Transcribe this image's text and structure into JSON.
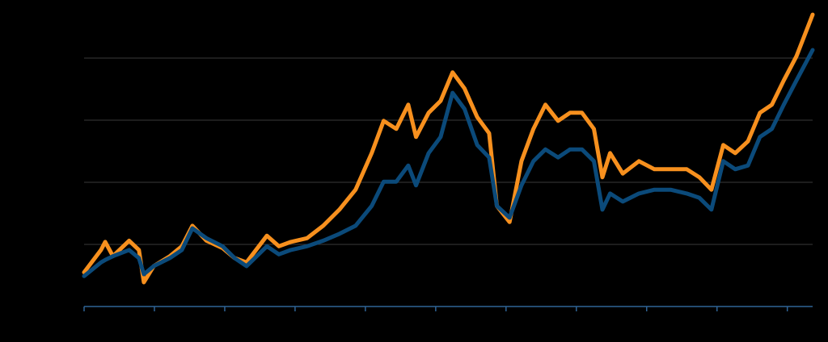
{
  "chart_data": {
    "type": "line",
    "x": [
      0,
      0.24,
      0.3,
      0.41,
      0.64,
      0.78,
      0.85,
      0.99,
      1.22,
      1.39,
      1.54,
      1.74,
      1.97,
      2.14,
      2.31,
      2.6,
      2.77,
      2.94,
      3.17,
      3.4,
      3.63,
      3.86,
      4.09,
      4.26,
      4.44,
      4.61,
      4.72,
      4.9,
      5.07,
      5.24,
      5.41,
      5.59,
      5.76,
      5.87,
      6.05,
      6.22,
      6.39,
      6.56,
      6.74,
      6.91,
      7.08,
      7.25,
      7.37,
      7.48,
      7.66,
      7.89,
      8.11,
      8.34,
      8.57,
      8.75,
      8.92,
      9.09,
      9.26,
      9.44,
      9.61,
      9.78,
      9.95,
      10.13,
      10.36
    ],
    "series": [
      {
        "color": "#f7901e",
        "values": [
          0.55,
          0.91,
          1.04,
          0.81,
          1.06,
          0.91,
          0.39,
          0.65,
          0.81,
          0.97,
          1.3,
          1.06,
          0.94,
          0.78,
          0.71,
          1.14,
          0.97,
          1.04,
          1.1,
          1.3,
          1.56,
          1.88,
          2.47,
          2.99,
          2.86,
          3.25,
          2.73,
          3.12,
          3.31,
          3.77,
          3.51,
          3.05,
          2.79,
          1.62,
          1.36,
          2.34,
          2.86,
          3.25,
          2.99,
          3.12,
          3.12,
          2.86,
          2.08,
          2.47,
          2.14,
          2.34,
          2.21,
          2.21,
          2.21,
          2.08,
          1.88,
          2.6,
          2.47,
          2.66,
          3.12,
          3.25,
          3.64,
          4.03,
          4.7
        ]
      },
      {
        "color": "#0b4a7a",
        "values": [
          0.49,
          0.71,
          0.75,
          0.81,
          0.91,
          0.78,
          0.52,
          0.65,
          0.78,
          0.91,
          1.26,
          1.1,
          0.97,
          0.78,
          0.65,
          0.97,
          0.84,
          0.91,
          0.97,
          1.06,
          1.17,
          1.3,
          1.62,
          2.01,
          2.01,
          2.27,
          1.95,
          2.47,
          2.73,
          3.44,
          3.18,
          2.6,
          2.4,
          1.62,
          1.43,
          1.95,
          2.34,
          2.53,
          2.4,
          2.53,
          2.53,
          2.34,
          1.56,
          1.82,
          1.69,
          1.82,
          1.88,
          1.88,
          1.82,
          1.75,
          1.56,
          2.34,
          2.21,
          2.27,
          2.73,
          2.86,
          3.25,
          3.64,
          4.13
        ]
      }
    ],
    "xlim": [
      0,
      10.36
    ],
    "xticks": [
      0,
      1,
      2,
      3,
      4,
      5,
      6,
      7,
      8,
      9,
      10
    ],
    "ylim": [
      0,
      5
    ],
    "yticks": [
      1,
      2,
      3,
      4
    ],
    "grid": true
  }
}
